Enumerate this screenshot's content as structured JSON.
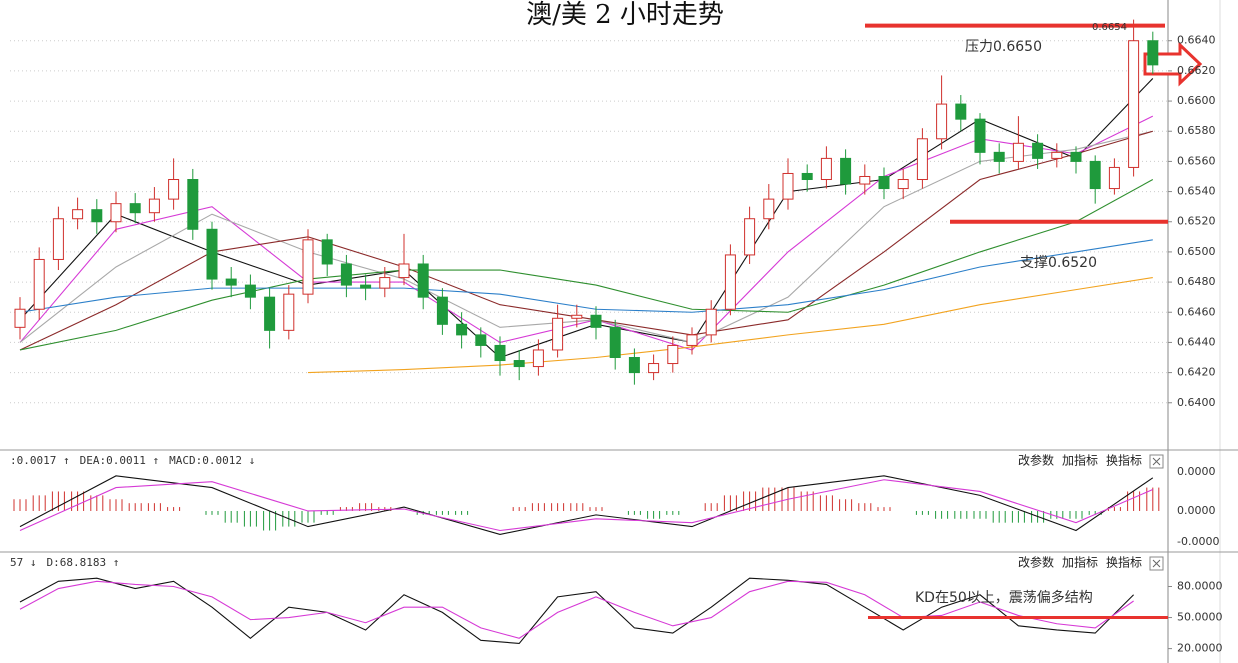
{
  "chart_data": [
    {
      "type": "candlestick",
      "title": "澳/美 2 小时走势",
      "up_color": "#d0302c",
      "down_color": "#1f9a3c",
      "ylim": [
        0.6372,
        0.6667
      ],
      "yticks": [
        {
          "value": 0.664,
          "label": "0.6640"
        },
        {
          "value": 0.662,
          "label": "0.6620"
        },
        {
          "value": 0.66,
          "label": "0.6600"
        },
        {
          "value": 0.658,
          "label": "0.6580"
        },
        {
          "value": 0.656,
          "label": "0.6560"
        },
        {
          "value": 0.654,
          "label": "0.6540"
        },
        {
          "value": 0.652,
          "label": "0.6520"
        },
        {
          "value": 0.65,
          "label": "0.6500"
        },
        {
          "value": 0.648,
          "label": "0.6480"
        },
        {
          "value": 0.646,
          "label": "0.6460"
        },
        {
          "value": 0.644,
          "label": "0.6440"
        },
        {
          "value": 0.642,
          "label": "0.6420"
        },
        {
          "value": 0.64,
          "label": "0.6400"
        }
      ],
      "grid": true,
      "ohlc": [
        [
          0.645,
          0.647,
          0.6442,
          0.6462
        ],
        [
          0.6462,
          0.6503,
          0.6455,
          0.6495
        ],
        [
          0.6495,
          0.653,
          0.6488,
          0.6522
        ],
        [
          0.6522,
          0.6536,
          0.6515,
          0.6528
        ],
        [
          0.6528,
          0.6535,
          0.6512,
          0.652
        ],
        [
          0.652,
          0.654,
          0.6513,
          0.6532
        ],
        [
          0.6532,
          0.6539,
          0.6519,
          0.6526
        ],
        [
          0.6526,
          0.6543,
          0.652,
          0.6535
        ],
        [
          0.6535,
          0.6562,
          0.6528,
          0.6548
        ],
        [
          0.6548,
          0.6555,
          0.6508,
          0.6515
        ],
        [
          0.6515,
          0.652,
          0.6475,
          0.6482
        ],
        [
          0.6482,
          0.649,
          0.647,
          0.6478
        ],
        [
          0.6478,
          0.6485,
          0.6462,
          0.647
        ],
        [
          0.647,
          0.6476,
          0.6436,
          0.6448
        ],
        [
          0.6448,
          0.6478,
          0.6442,
          0.6472
        ],
        [
          0.6472,
          0.6515,
          0.6466,
          0.6508
        ],
        [
          0.6508,
          0.6512,
          0.6484,
          0.6492
        ],
        [
          0.6492,
          0.6498,
          0.647,
          0.6478
        ],
        [
          0.6478,
          0.6485,
          0.6468,
          0.6476
        ],
        [
          0.6476,
          0.649,
          0.647,
          0.6483
        ],
        [
          0.6483,
          0.6512,
          0.6478,
          0.6492
        ],
        [
          0.6492,
          0.6498,
          0.6462,
          0.647
        ],
        [
          0.647,
          0.6476,
          0.6445,
          0.6452
        ],
        [
          0.6452,
          0.646,
          0.6436,
          0.6445
        ],
        [
          0.6445,
          0.645,
          0.643,
          0.6438
        ],
        [
          0.6438,
          0.6444,
          0.6418,
          0.6428
        ],
        [
          0.6428,
          0.6435,
          0.6415,
          0.6424
        ],
        [
          0.6424,
          0.6442,
          0.6418,
          0.6435
        ],
        [
          0.6435,
          0.6465,
          0.643,
          0.6456
        ],
        [
          0.6456,
          0.6465,
          0.645,
          0.6458
        ],
        [
          0.6458,
          0.6464,
          0.6442,
          0.645
        ],
        [
          0.645,
          0.6455,
          0.6422,
          0.643
        ],
        [
          0.643,
          0.6436,
          0.6412,
          0.642
        ],
        [
          0.642,
          0.6432,
          0.6415,
          0.6426
        ],
        [
          0.6426,
          0.6444,
          0.642,
          0.6438
        ],
        [
          0.6438,
          0.645,
          0.6432,
          0.6445
        ],
        [
          0.6445,
          0.6468,
          0.644,
          0.6462
        ],
        [
          0.6462,
          0.6505,
          0.6458,
          0.6498
        ],
        [
          0.6498,
          0.653,
          0.6492,
          0.6522
        ],
        [
          0.6522,
          0.6545,
          0.6515,
          0.6535
        ],
        [
          0.6535,
          0.6562,
          0.6528,
          0.6552
        ],
        [
          0.6552,
          0.6558,
          0.654,
          0.6548
        ],
        [
          0.6548,
          0.657,
          0.6542,
          0.6562
        ],
        [
          0.6562,
          0.6568,
          0.6538,
          0.6545
        ],
        [
          0.6545,
          0.6558,
          0.6538,
          0.655
        ],
        [
          0.655,
          0.6556,
          0.6535,
          0.6542
        ],
        [
          0.6542,
          0.6555,
          0.6535,
          0.6548
        ],
        [
          0.6548,
          0.6582,
          0.6542,
          0.6575
        ],
        [
          0.6575,
          0.6617,
          0.6568,
          0.6598
        ],
        [
          0.6598,
          0.6604,
          0.658,
          0.6588
        ],
        [
          0.6588,
          0.6592,
          0.6558,
          0.6566
        ],
        [
          0.6566,
          0.6572,
          0.6552,
          0.656
        ],
        [
          0.656,
          0.659,
          0.6555,
          0.6572
        ],
        [
          0.6572,
          0.6578,
          0.6555,
          0.6562
        ],
        [
          0.6562,
          0.6572,
          0.6556,
          0.6566
        ],
        [
          0.6566,
          0.657,
          0.6552,
          0.656
        ],
        [
          0.656,
          0.6564,
          0.6532,
          0.6542
        ],
        [
          0.6542,
          0.6562,
          0.6538,
          0.6556
        ],
        [
          0.6556,
          0.6654,
          0.655,
          0.664
        ],
        [
          0.664,
          0.6646,
          0.6618,
          0.6624
        ]
      ],
      "series": [
        {
          "color": "#111111",
          "x": [
            0,
            5,
            10,
            15,
            20,
            25,
            30,
            35,
            40,
            45,
            50,
            55,
            59
          ],
          "values": [
            0.6455,
            0.6525,
            0.65,
            0.6478,
            0.6488,
            0.643,
            0.6452,
            0.644,
            0.654,
            0.6548,
            0.6588,
            0.6562,
            0.6615
          ]
        },
        {
          "color": "#d63ad6",
          "x": [
            0,
            5,
            10,
            15,
            20,
            25,
            30,
            35,
            40,
            45,
            50,
            55,
            59
          ],
          "values": [
            0.644,
            0.6515,
            0.653,
            0.648,
            0.648,
            0.644,
            0.6455,
            0.6435,
            0.65,
            0.655,
            0.6575,
            0.6565,
            0.659
          ]
        },
        {
          "color": "#a8a8a8",
          "x": [
            0,
            5,
            10,
            15,
            20,
            25,
            30,
            35,
            40,
            45,
            50,
            55,
            59
          ],
          "values": [
            0.644,
            0.649,
            0.6525,
            0.65,
            0.6482,
            0.645,
            0.6455,
            0.644,
            0.647,
            0.653,
            0.656,
            0.6568,
            0.658
          ]
        },
        {
          "color": "#8b2a2a",
          "x": [
            0,
            5,
            10,
            15,
            20,
            25,
            30,
            35,
            40,
            45,
            50,
            55,
            59
          ],
          "values": [
            0.6435,
            0.6465,
            0.65,
            0.651,
            0.649,
            0.6465,
            0.6455,
            0.6445,
            0.6455,
            0.65,
            0.6548,
            0.6565,
            0.658
          ]
        },
        {
          "color": "#2f8f2f",
          "x": [
            0,
            5,
            10,
            15,
            20,
            25,
            30,
            35,
            40,
            45,
            50,
            55,
            59
          ],
          "values": [
            0.6435,
            0.6448,
            0.6468,
            0.6482,
            0.6488,
            0.6488,
            0.6478,
            0.6462,
            0.646,
            0.6478,
            0.65,
            0.652,
            0.6548
          ]
        },
        {
          "color": "#2b7fc9",
          "x": [
            0,
            5,
            10,
            15,
            20,
            25,
            30,
            35,
            40,
            45,
            50,
            55,
            59
          ],
          "values": [
            0.646,
            0.647,
            0.6476,
            0.6476,
            0.6476,
            0.6472,
            0.6462,
            0.646,
            0.6465,
            0.6475,
            0.649,
            0.65,
            0.6508
          ]
        },
        {
          "color": "#f2a31f",
          "x": [
            15,
            20,
            25,
            30,
            35,
            40,
            45,
            50,
            55,
            59
          ],
          "values": [
            0.642,
            0.6422,
            0.6425,
            0.643,
            0.6437,
            0.6445,
            0.6452,
            0.6465,
            0.6475,
            0.6483
          ]
        }
      ],
      "levels": [
        {
          "label": "压力0.6650",
          "value": 0.665,
          "color": "#e8332e"
        },
        {
          "label": "支撑0.6520",
          "value": 0.652,
          "color": "#e8332e"
        }
      ],
      "peak_label": "0.6654"
    },
    {
      "type": "macd",
      "header": [
        {
          "text": ":0.0017 ↑",
          "color": "#111111"
        },
        {
          "text": "DEA:0.0011 ↑",
          "color": "#c02cc0"
        },
        {
          "text": "MACD:0.0012 ↓",
          "color": "#777777"
        }
      ],
      "buttons": [
        "改参数",
        "加指标",
        "换指标"
      ],
      "axis_labels": [
        "0.0000",
        "0.0000",
        "-0.0000"
      ],
      "ylim": [
        -0.002,
        0.0021
      ],
      "up_color": "#d0302c",
      "down_color": "#1f9a3c",
      "histogram": [
        0.0006,
        0.0008,
        0.001,
        0.001,
        0.0008,
        0.0006,
        0.0004,
        0.0004,
        0.0002,
        0,
        -0.0002,
        -0.0006,
        -0.0008,
        -0.001,
        -0.0008,
        -0.0006,
        -0.0002,
        0.0002,
        0.0004,
        0.0002,
        0,
        -0.0002,
        -0.0002,
        -0.0002,
        0,
        0,
        0.0002,
        0.0004,
        0.0004,
        0.0004,
        0.0002,
        0,
        -0.0002,
        -0.0004,
        -0.0002,
        0,
        0.0004,
        0.0008,
        0.001,
        0.0012,
        0.0012,
        0.001,
        0.0008,
        0.0006,
        0.0004,
        0.0002,
        0,
        -0.0002,
        -0.0004,
        -0.0004,
        -0.0004,
        -0.0006,
        -0.0006,
        -0.0006,
        -0.0004,
        -0.0004,
        -0.0002,
        0.0002,
        0.001,
        0.0012
      ],
      "series": [
        {
          "color": "#111111",
          "x": [
            0,
            5,
            10,
            15,
            20,
            25,
            30,
            35,
            40,
            45,
            50,
            55,
            59
          ],
          "values": [
            -0.0008,
            0.0018,
            0.0012,
            -0.0008,
            0.0002,
            -0.0012,
            -0.0002,
            -0.0008,
            0.0012,
            0.0018,
            0.0008,
            -0.001,
            0.0017
          ]
        },
        {
          "color": "#d63ad6",
          "x": [
            0,
            5,
            10,
            15,
            20,
            25,
            30,
            35,
            40,
            45,
            50,
            55,
            59
          ],
          "values": [
            -0.001,
            0.0012,
            0.0015,
            0.0,
            0.0001,
            -0.001,
            -0.0004,
            -0.0006,
            0.0006,
            0.0016,
            0.001,
            -0.0006,
            0.0011
          ]
        }
      ]
    },
    {
      "type": "kd",
      "header": [
        {
          "text": "57 ↓",
          "color": "#111111"
        },
        {
          "text": "D:68.8183 ↑",
          "color": "#c02cc0"
        }
      ],
      "buttons": [
        "改参数",
        "加指标",
        "换指标"
      ],
      "ylim": [
        9,
        94
      ],
      "yticks": [
        {
          "value": 80,
          "label": "80.0000"
        },
        {
          "value": 50,
          "label": "50.0000"
        },
        {
          "value": 20,
          "label": "20.0000"
        }
      ],
      "level": {
        "label": "KD在50以上，震荡偏多结构",
        "value": 50,
        "color": "#e8332e"
      },
      "series": [
        {
          "color": "#111111",
          "x": [
            0,
            2,
            4,
            6,
            8,
            10,
            12,
            14,
            16,
            18,
            20,
            22,
            24,
            26,
            28,
            30,
            32,
            34,
            36,
            38,
            40,
            42,
            44,
            46,
            48,
            50,
            52,
            54,
            56,
            58
          ],
          "values": [
            65,
            85,
            88,
            78,
            85,
            60,
            30,
            60,
            55,
            38,
            72,
            55,
            28,
            25,
            70,
            75,
            40,
            35,
            60,
            88,
            86,
            82,
            60,
            38,
            60,
            72,
            42,
            38,
            35,
            72
          ]
        },
        {
          "color": "#d63ad6",
          "x": [
            0,
            2,
            4,
            6,
            8,
            10,
            12,
            14,
            16,
            18,
            20,
            22,
            24,
            26,
            28,
            30,
            32,
            34,
            36,
            38,
            40,
            42,
            44,
            46,
            48,
            50,
            52,
            54,
            56,
            58
          ],
          "values": [
            58,
            78,
            85,
            82,
            80,
            70,
            48,
            50,
            55,
            45,
            60,
            60,
            40,
            30,
            55,
            70,
            55,
            42,
            50,
            75,
            85,
            84,
            72,
            50,
            52,
            65,
            52,
            44,
            40,
            66
          ]
        }
      ]
    }
  ]
}
